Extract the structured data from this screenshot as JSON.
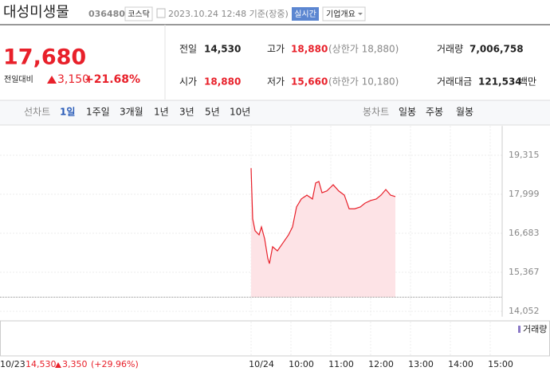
{
  "header": {
    "name": "대성미생물",
    "code": "036480",
    "market": "코스닥",
    "timestamp": "2023.10.24 12:48 기준(장중)",
    "realtime": "실시간",
    "company": "기업개요"
  },
  "quote": {
    "price": "17,680",
    "change_label": "전일대비",
    "change": "3,150",
    "change_rate": "+21.68%",
    "stats": [
      {
        "label": "전일",
        "value": "14,530"
      },
      {
        "label": "고가",
        "value": "18,880",
        "note": "(상한가 18,880)"
      },
      {
        "label": "거래량",
        "value": "7,006,758"
      },
      {
        "label": "시가",
        "value": "18,880"
      },
      {
        "label": "저가",
        "value": "15,660",
        "note": "(하한가 10,180)"
      },
      {
        "label": "거래대금",
        "value": "121,534",
        "unit": "백만"
      }
    ]
  },
  "tabs": {
    "line_label": "선차트",
    "line": [
      "1일",
      "1주일",
      "3개월",
      "1년",
      "3년",
      "5년",
      "10년"
    ],
    "candle_label": "봉차트",
    "candle": [
      "일봉",
      "주봉",
      "월봉"
    ]
  },
  "chart_data": {
    "type": "area",
    "color": "#e8202a",
    "fill": "#fde3e6",
    "baseline": 14530,
    "x": [
      9.0,
      9.04,
      9.1,
      9.2,
      9.26,
      9.34,
      9.42,
      9.46,
      9.54,
      9.66,
      9.8,
      9.94,
      10.04,
      10.14,
      10.26,
      10.4,
      10.54,
      10.62,
      10.7,
      10.78,
      10.9,
      11.06,
      11.2,
      11.34,
      11.46,
      11.6,
      11.74,
      11.86,
      12.0,
      12.14,
      12.26,
      12.38,
      12.5,
      12.62
    ],
    "values": [
      18880,
      17170,
      16770,
      16630,
      16900,
      16500,
      15830,
      15660,
      16230,
      16090,
      16360,
      16630,
      16900,
      17570,
      17840,
      17970,
      17840,
      18380,
      18430,
      18050,
      18110,
      18320,
      18110,
      17970,
      17510,
      17510,
      17570,
      17700,
      17790,
      17840,
      17970,
      18160,
      17970,
      17920
    ],
    "ylim": [
      13870,
      20300
    ],
    "yticks": [
      {
        "value": 19315,
        "label": "19,315"
      },
      {
        "value": 17999,
        "label": "17,999"
      },
      {
        "value": 16683,
        "label": "16,683"
      },
      {
        "value": 15367,
        "label": "15,367"
      },
      {
        "value": 14052,
        "label": "14,052"
      }
    ],
    "xlim": [
      2.7,
      15.3
    ],
    "xticks": [
      {
        "value": 9,
        "label": "10/24"
      },
      {
        "value": 10,
        "label": "10:00"
      },
      {
        "value": 11,
        "label": "11:00"
      },
      {
        "value": 12,
        "label": "12:00"
      },
      {
        "value": 13,
        "label": "13:00"
      },
      {
        "value": 14,
        "label": "14:00"
      },
      {
        "value": 15,
        "label": "15:00"
      }
    ],
    "volume_legend": "거래량",
    "prev_day": {
      "date": "10/23",
      "close": "14,530",
      "change": "3,350",
      "rate": "(+29.96%)"
    }
  }
}
